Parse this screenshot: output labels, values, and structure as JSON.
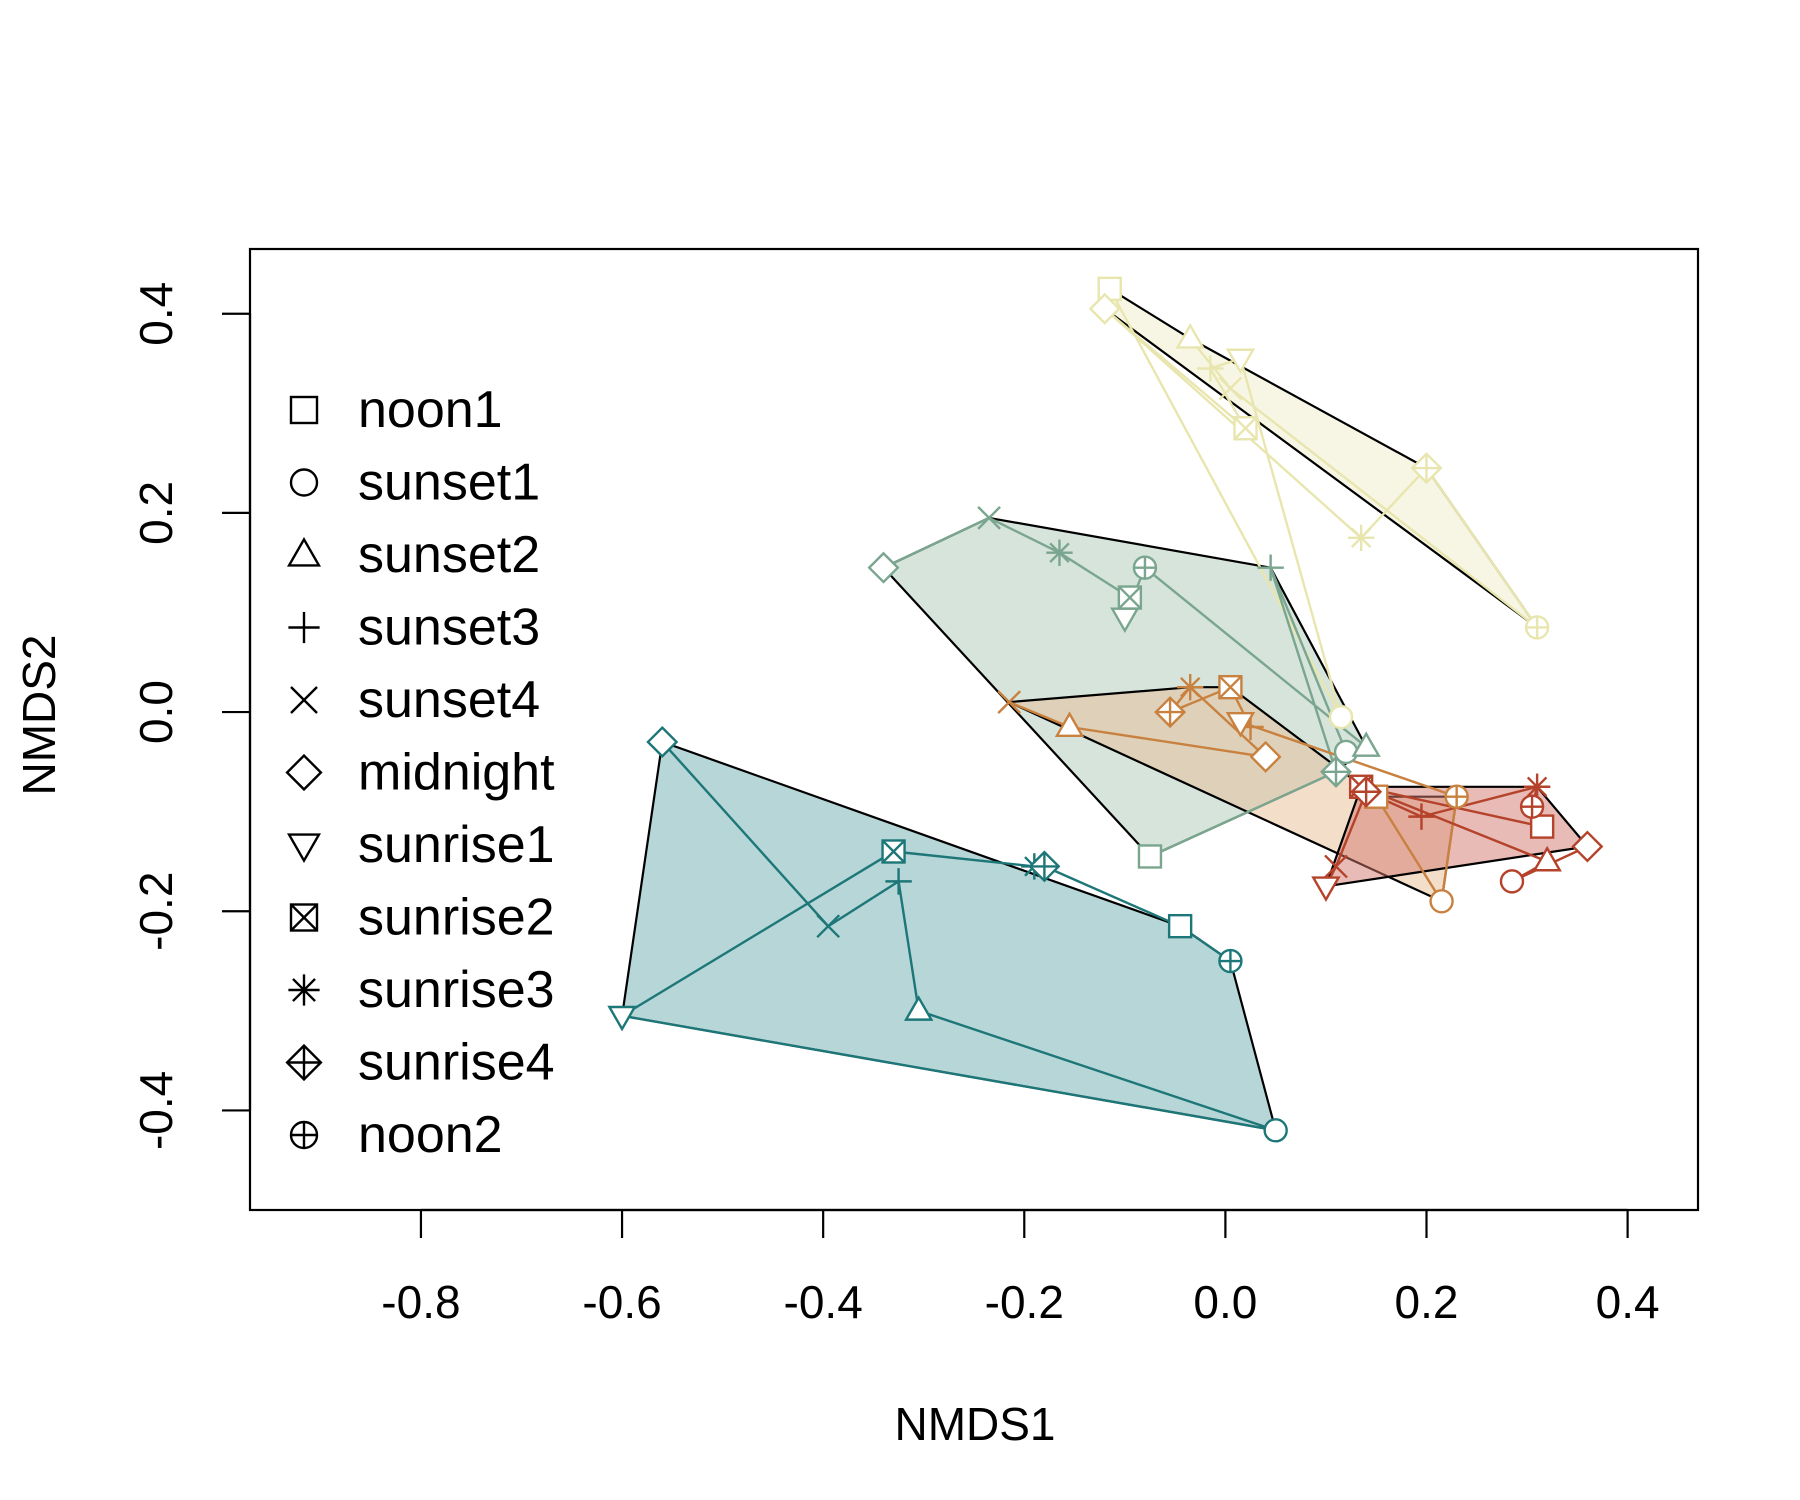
{
  "chart_data": {
    "type": "scatter",
    "title": "",
    "xlabel": "NMDS1",
    "ylabel": "NMDS2",
    "xlim": [
      -0.97,
      0.47
    ],
    "ylim": [
      -0.5,
      0.465
    ],
    "xticks": [
      -0.8,
      -0.6,
      -0.4,
      -0.2,
      0.0,
      0.2,
      0.4
    ],
    "xtick_labels": [
      "-0.8",
      "-0.6",
      "-0.4",
      "-0.2",
      "0.0",
      "0.2",
      "0.4"
    ],
    "yticks": [
      -0.4,
      -0.2,
      0.0,
      0.2,
      0.4
    ],
    "ytick_labels": [
      "-0.4",
      "-0.2",
      "0.0",
      "0.2",
      "0.4"
    ],
    "grid": false,
    "legend_position": "left",
    "legend": [
      {
        "label": "noon1",
        "marker": "square"
      },
      {
        "label": "sunset1",
        "marker": "circle"
      },
      {
        "label": "sunset2",
        "marker": "triangle-up"
      },
      {
        "label": "sunset3",
        "marker": "plus"
      },
      {
        "label": "sunset4",
        "marker": "cross"
      },
      {
        "label": "midnight",
        "marker": "diamond"
      },
      {
        "label": "sunrise1",
        "marker": "triangle-down"
      },
      {
        "label": "sunrise2",
        "marker": "square-cross"
      },
      {
        "label": "sunrise3",
        "marker": "asterisk"
      },
      {
        "label": "sunrise4",
        "marker": "diamond-plus"
      },
      {
        "label": "noon2",
        "marker": "circle-plus"
      }
    ],
    "groups": [
      {
        "color": "#e8e6ae",
        "fill": "rgba(238,236,196,0.45)",
        "points": [
          [
            -0.115,
            0.425
          ],
          [
            0.115,
            -0.005
          ],
          [
            -0.035,
            0.375
          ],
          [
            -0.015,
            0.345
          ],
          [
            0.005,
            0.325
          ],
          [
            -0.12,
            0.405
          ],
          [
            0.015,
            0.355
          ],
          [
            0.02,
            0.285
          ],
          [
            0.135,
            0.175
          ],
          [
            0.2,
            0.245
          ],
          [
            0.31,
            0.085
          ]
        ],
        "sequence": [
          0,
          1,
          6,
          3,
          7,
          5,
          8,
          9,
          10,
          4,
          2
        ]
      },
      {
        "color": "#7aa58e",
        "fill": "rgba(166,196,178,0.45)",
        "points": [
          [
            -0.075,
            -0.145
          ],
          [
            0.12,
            -0.04
          ],
          [
            0.14,
            -0.035
          ],
          [
            0.045,
            0.145
          ],
          [
            -0.235,
            0.195
          ],
          [
            -0.34,
            0.145
          ],
          [
            -0.1,
            0.095
          ],
          [
            -0.095,
            0.115
          ],
          [
            -0.165,
            0.16
          ],
          [
            0.11,
            -0.06
          ],
          [
            -0.08,
            0.145
          ]
        ],
        "sequence": [
          5,
          4,
          8,
          7,
          6,
          10,
          2,
          1,
          3,
          9,
          0
        ]
      },
      {
        "color": "#c8813f",
        "fill": "rgba(232,190,150,0.5)",
        "points": [
          [
            0.15,
            -0.085
          ],
          [
            0.215,
            -0.19
          ],
          [
            -0.155,
            -0.015
          ],
          [
            0.025,
            -0.015
          ],
          [
            -0.215,
            0.01
          ],
          [
            0.04,
            -0.045
          ],
          [
            0.015,
            -0.01
          ],
          [
            0.005,
            0.025
          ],
          [
            -0.035,
            0.025
          ],
          [
            -0.055,
            0.0
          ],
          [
            0.23,
            -0.085
          ]
        ],
        "sequence": [
          4,
          2,
          5,
          8,
          9,
          7,
          3,
          6,
          10,
          1,
          0
        ]
      },
      {
        "color": "#b5422a",
        "fill": "rgba(210,120,110,0.5)",
        "points": [
          [
            0.315,
            -0.115
          ],
          [
            0.285,
            -0.17
          ],
          [
            0.32,
            -0.15
          ],
          [
            0.195,
            -0.105
          ],
          [
            0.11,
            -0.155
          ],
          [
            0.36,
            -0.135
          ],
          [
            0.1,
            -0.175
          ],
          [
            0.135,
            -0.075
          ],
          [
            0.31,
            -0.075
          ],
          [
            0.14,
            -0.08
          ],
          [
            0.305,
            -0.095
          ]
        ],
        "sequence": [
          6,
          4,
          9,
          3,
          8,
          10,
          0,
          7,
          2,
          1,
          5
        ]
      },
      {
        "color": "#1d7677",
        "fill": "rgba(134,187,189,0.6)",
        "points": [
          [
            -0.045,
            -0.215
          ],
          [
            0.05,
            -0.42
          ],
          [
            -0.305,
            -0.3
          ],
          [
            -0.325,
            -0.17
          ],
          [
            -0.395,
            -0.215
          ],
          [
            -0.56,
            -0.03
          ],
          [
            -0.6,
            -0.305
          ],
          [
            -0.33,
            -0.14
          ],
          [
            -0.19,
            -0.155
          ],
          [
            -0.18,
            -0.155
          ],
          [
            0.005,
            -0.25
          ]
        ],
        "sequence": [
          5,
          4,
          3,
          2,
          1,
          6,
          7,
          8,
          9,
          0,
          10
        ]
      }
    ],
    "hulls": [
      [
        [
          -0.115,
          0.425
        ],
        [
          -0.12,
          0.405
        ],
        [
          0.31,
          0.085
        ],
        [
          0.2,
          0.245
        ],
        [
          -0.035,
          0.375
        ]
      ],
      [
        [
          -0.34,
          0.145
        ],
        [
          -0.075,
          -0.145
        ],
        [
          0.11,
          -0.06
        ],
        [
          0.14,
          -0.035
        ],
        [
          0.045,
          0.145
        ],
        [
          -0.235,
          0.195
        ]
      ],
      [
        [
          -0.215,
          0.01
        ],
        [
          0.215,
          -0.19
        ],
        [
          0.23,
          -0.085
        ],
        [
          0.15,
          -0.085
        ],
        [
          0.005,
          0.025
        ],
        [
          -0.035,
          0.025
        ]
      ],
      [
        [
          0.1,
          -0.175
        ],
        [
          0.36,
          -0.135
        ],
        [
          0.31,
          -0.075
        ],
        [
          0.135,
          -0.075
        ]
      ],
      [
        [
          -0.56,
          -0.03
        ],
        [
          -0.6,
          -0.305
        ],
        [
          0.05,
          -0.42
        ],
        [
          0.005,
          -0.25
        ],
        [
          -0.045,
          -0.215
        ]
      ]
    ]
  }
}
